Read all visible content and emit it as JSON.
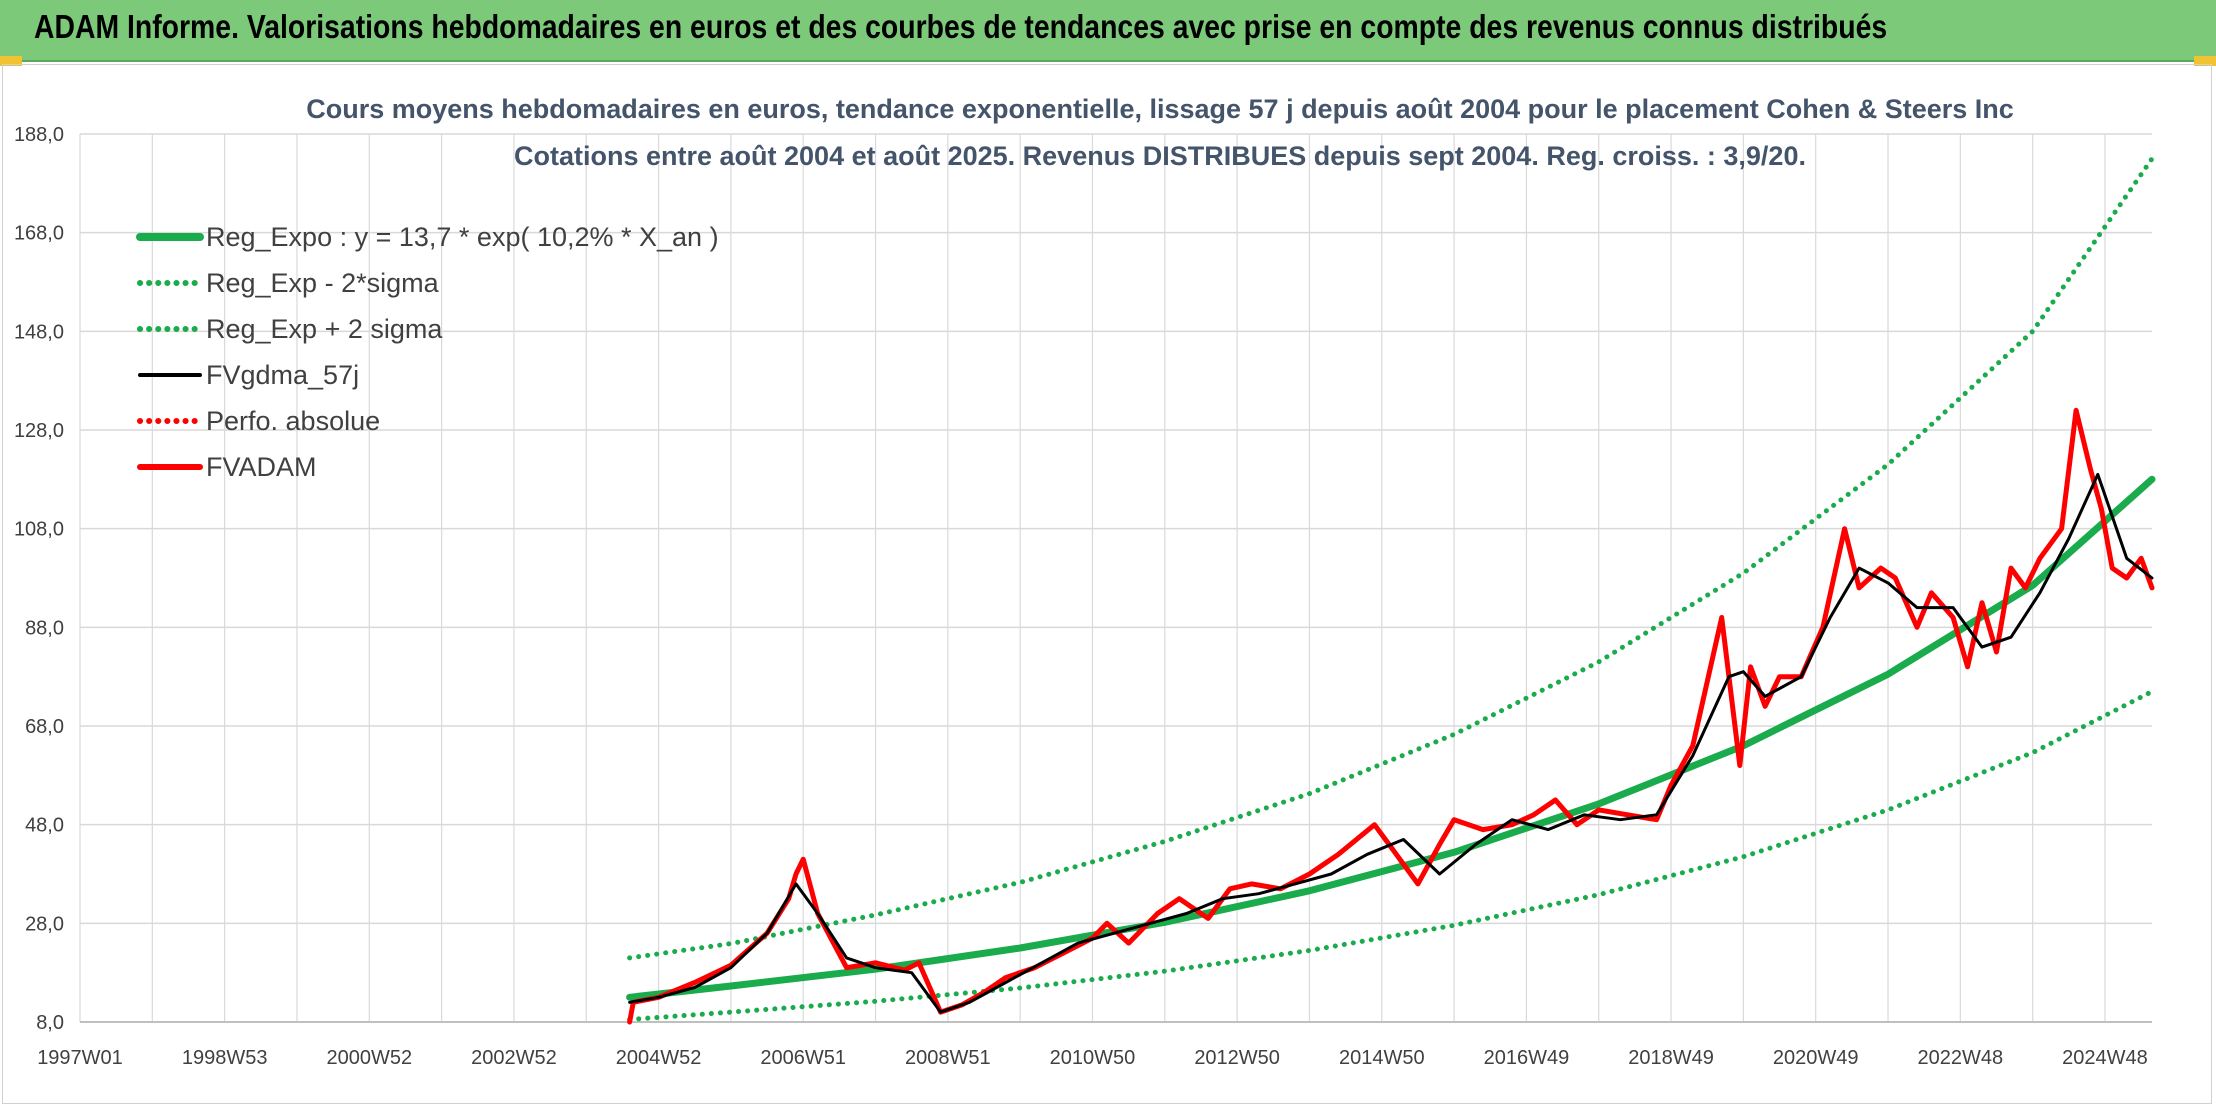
{
  "banner": {
    "title": "ADAM Informe. Valorisations hebdomadaires en euros et des courbes de tendances avec prise en compte des revenus connus distribués"
  },
  "colors": {
    "banner_bg": "#7dc97a",
    "trend_green": "#1aab4c",
    "fv_black": "#000000",
    "fvadam_red": "#ff0000",
    "grid": "#d9d9d9",
    "title_text": "#44546a"
  },
  "chart_data": {
    "type": "line",
    "title": "Cours moyens hebdomadaires en euros, tendance exponentielle, lissage 57 j depuis août 2004 pour le placement Cohen & Steers Inc",
    "subtitle": "Cotations entre août 2004 et août 2025. Revenus DISTRIBUES depuis sept 2004. Reg. croiss. : 3,9/20.",
    "xlabel": "",
    "ylabel": "",
    "x_axis": {
      "type": "year",
      "range": [
        1997.0,
        2025.65
      ],
      "tick_labels": [
        "1997W01",
        "1998W53",
        "2000W52",
        "2002W52",
        "2004W52",
        "2006W51",
        "2008W51",
        "2010W50",
        "2012W50",
        "2014W50",
        "2016W49",
        "2018W49",
        "2020W49",
        "2022W48",
        "2024W48"
      ],
      "tick_positions": [
        1997.0,
        1999.0,
        2001.0,
        2003.0,
        2005.0,
        2007.0,
        2009.0,
        2011.0,
        2013.0,
        2015.0,
        2017.0,
        2019.0,
        2021.0,
        2023.0,
        2025.0
      ]
    },
    "y_axis": {
      "range": [
        8.0,
        188.0
      ],
      "ticks": [
        8.0,
        28.0,
        48.0,
        68.0,
        88.0,
        108.0,
        128.0,
        148.0,
        168.0,
        188.0
      ],
      "tick_labels": [
        "8,0",
        "28,0",
        "48,0",
        "68,0",
        "88,0",
        "108,0",
        "128,0",
        "148,0",
        "168,0",
        "188,0"
      ]
    },
    "grid": true,
    "legend_position": "top-left",
    "series": [
      {
        "name": "Reg_Expo : y = 13,7 * exp( 10,2% *  X_an )",
        "style": "solid-thick",
        "color": "#1aab4c",
        "x": [
          2004.6,
          2006.0,
          2008.0,
          2010.0,
          2012.0,
          2014.0,
          2016.0,
          2018.0,
          2020.0,
          2022.0,
          2024.0,
          2025.65
        ],
        "values": [
          13.0,
          15.3,
          18.7,
          23.0,
          28.2,
          34.6,
          42.4,
          52.2,
          64.0,
          78.5,
          96.5,
          118.0
        ]
      },
      {
        "name": "Reg_Exp - 2*sigma",
        "style": "dotted",
        "color": "#1aab4c",
        "x": [
          2004.6,
          2006.0,
          2008.0,
          2010.0,
          2012.0,
          2014.0,
          2016.0,
          2018.0,
          2020.0,
          2022.0,
          2024.0,
          2025.65
        ],
        "values": [
          8.5,
          10.0,
          12.2,
          14.9,
          18.3,
          22.5,
          27.6,
          33.8,
          41.5,
          51.0,
          62.6,
          75.0
        ]
      },
      {
        "name": "Reg_Exp + 2 sigma",
        "style": "dotted",
        "color": "#1aab4c",
        "x": [
          2004.6,
          2006.0,
          2008.0,
          2010.0,
          2012.0,
          2014.0,
          2016.0,
          2018.0,
          2020.0,
          2022.0,
          2024.0,
          2025.65
        ],
        "values": [
          21.0,
          23.9,
          29.7,
          36.3,
          44.6,
          54.3,
          66.3,
          81.0,
          99.0,
          121.0,
          148.0,
          183.0
        ]
      },
      {
        "name": "FVgdma_57j",
        "style": "solid",
        "color": "#000000",
        "x": [
          2004.6,
          2005.0,
          2005.5,
          2006.0,
          2006.5,
          2006.9,
          2007.2,
          2007.6,
          2008.0,
          2008.5,
          2008.9,
          2009.3,
          2009.8,
          2010.3,
          2010.8,
          2011.3,
          2011.8,
          2012.3,
          2012.8,
          2013.3,
          2013.8,
          2014.3,
          2014.8,
          2015.3,
          2015.8,
          2016.3,
          2016.8,
          2017.3,
          2017.8,
          2018.3,
          2018.8,
          2019.3,
          2019.8,
          2020.0,
          2020.3,
          2020.8,
          2021.2,
          2021.6,
          2022.0,
          2022.4,
          2022.9,
          2023.3,
          2023.7,
          2024.1,
          2024.5,
          2024.9,
          2025.3,
          2025.65
        ],
        "values": [
          12.0,
          13.0,
          15.0,
          19.0,
          26.0,
          36.0,
          30.0,
          21.0,
          19.0,
          18.0,
          10.0,
          12.0,
          16.0,
          20.0,
          24.0,
          26.0,
          28.0,
          30.0,
          33.0,
          34.0,
          36.0,
          38.0,
          42.0,
          45.0,
          38.0,
          44.0,
          49.0,
          47.0,
          50.0,
          49.0,
          50.0,
          62.0,
          78.0,
          79.0,
          74.0,
          78.0,
          90.0,
          100.0,
          97.0,
          92.0,
          92.0,
          84.0,
          86.0,
          95.0,
          106.0,
          119.0,
          102.0,
          98.0
        ]
      },
      {
        "name": "Perfo. absolue",
        "style": "dotted",
        "color": "#ff0000",
        "x": [],
        "values": []
      },
      {
        "name": "FVADAM",
        "style": "solid-thick",
        "color": "#ff0000",
        "x": [
          2004.6,
          2004.65,
          2005.0,
          2005.5,
          2006.0,
          2006.5,
          2006.8,
          2006.9,
          2007.0,
          2007.2,
          2007.6,
          2008.0,
          2008.4,
          2008.6,
          2008.9,
          2009.2,
          2009.5,
          2009.8,
          2010.2,
          2010.6,
          2011.0,
          2011.2,
          2011.5,
          2011.9,
          2012.2,
          2012.6,
          2012.9,
          2013.2,
          2013.6,
          2014.0,
          2014.4,
          2014.9,
          2015.1,
          2015.5,
          2015.8,
          2016.0,
          2016.4,
          2016.8,
          2017.1,
          2017.4,
          2017.7,
          2018.0,
          2018.4,
          2018.8,
          2019.0,
          2019.3,
          2019.7,
          2019.95,
          2020.1,
          2020.3,
          2020.5,
          2020.8,
          2021.1,
          2021.4,
          2021.6,
          2021.9,
          2022.1,
          2022.4,
          2022.6,
          2022.9,
          2023.1,
          2023.3,
          2023.5,
          2023.7,
          2023.9,
          2024.1,
          2024.4,
          2024.6,
          2024.8,
          2024.95,
          2025.1,
          2025.3,
          2025.5,
          2025.65
        ],
        "values": [
          8.0,
          12.0,
          13.0,
          16.0,
          19.5,
          26.0,
          33.0,
          38.0,
          41.0,
          30.0,
          19.0,
          20.0,
          18.5,
          20.0,
          10.0,
          11.5,
          14.0,
          17.0,
          19.0,
          22.0,
          25.0,
          28.0,
          24.0,
          30.0,
          33.0,
          29.0,
          35.0,
          36.0,
          35.0,
          38.0,
          42.0,
          48.0,
          44.0,
          36.0,
          44.0,
          49.0,
          47.0,
          48.0,
          50.0,
          53.0,
          48.0,
          51.0,
          50.0,
          49.0,
          56.0,
          64.0,
          90.0,
          60.0,
          80.0,
          72.0,
          78.0,
          78.0,
          88.0,
          108.0,
          96.0,
          100.0,
          98.0,
          88.0,
          95.0,
          90.0,
          80.0,
          93.0,
          83.0,
          100.0,
          96.0,
          102.0,
          108.0,
          132.0,
          120.0,
          112.0,
          100.0,
          98.0,
          102.0,
          96.0
        ]
      }
    ]
  }
}
